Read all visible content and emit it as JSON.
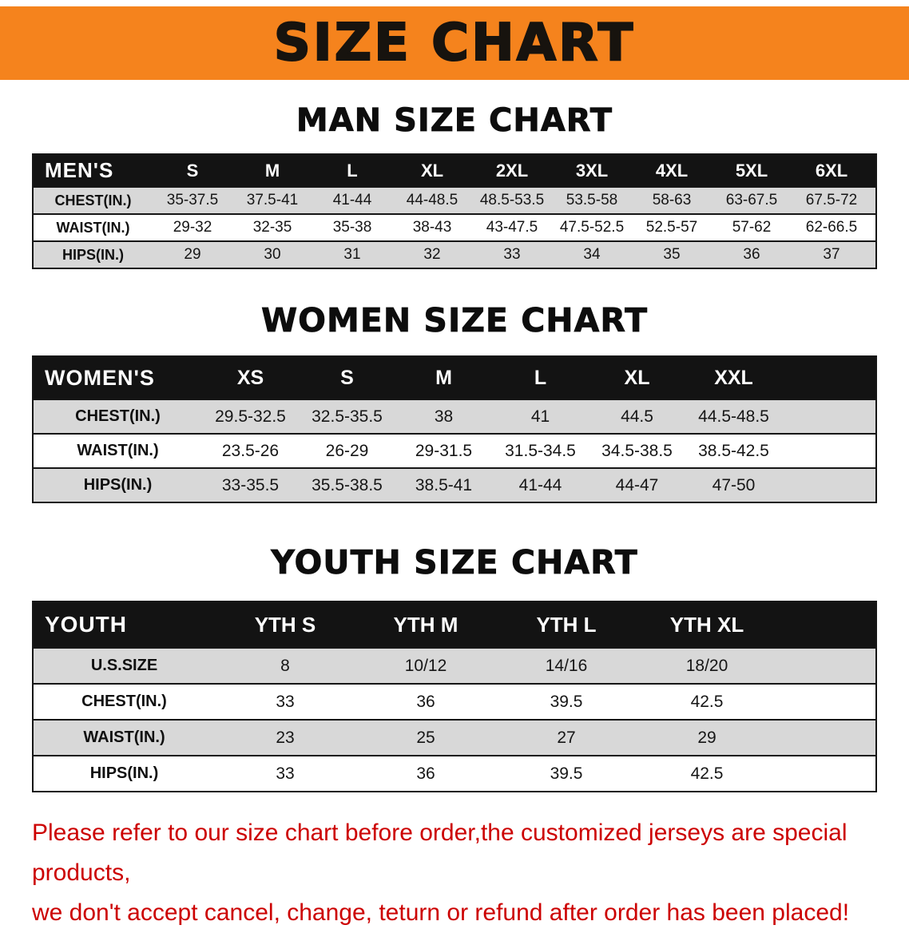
{
  "banner": {
    "title": "SIZE CHART",
    "background_color": "#F5831D"
  },
  "sections": [
    {
      "heading": "MAN SIZE CHART",
      "table": {
        "header_label": "MEN'S",
        "columns": [
          "S",
          "M",
          "L",
          "XL",
          "2XL",
          "3XL",
          "4XL",
          "5XL",
          "6XL"
        ],
        "rows": [
          {
            "label": "CHEST(IN.)",
            "values": [
              "35-37.5",
              "37.5-41",
              "41-44",
              "44-48.5",
              "48.5-53.5",
              "53.5-58",
              "58-63",
              "63-67.5",
              "67.5-72"
            ]
          },
          {
            "label": "WAIST(IN.)",
            "values": [
              "29-32",
              "32-35",
              "35-38",
              "38-43",
              "43-47.5",
              "47.5-52.5",
              "52.5-57",
              "57-62",
              "62-66.5"
            ]
          },
          {
            "label": "HIPS(IN.)",
            "values": [
              "29",
              "30",
              "31",
              "32",
              "33",
              "34",
              "35",
              "36",
              "37"
            ]
          }
        ]
      }
    },
    {
      "heading": "WOMEN SIZE CHART",
      "table": {
        "header_label": "WOMEN'S",
        "columns": [
          "XS",
          "S",
          "M",
          "L",
          "XL",
          "XXL"
        ],
        "rows": [
          {
            "label": "CHEST(IN.)",
            "values": [
              "29.5-32.5",
              "32.5-35.5",
              "38",
              "41",
              "44.5",
              "44.5-48.5"
            ]
          },
          {
            "label": "WAIST(IN.)",
            "values": [
              "23.5-26",
              "26-29",
              "29-31.5",
              "31.5-34.5",
              "34.5-38.5",
              "38.5-42.5"
            ]
          },
          {
            "label": "HIPS(IN.)",
            "values": [
              "33-35.5",
              "35.5-38.5",
              "38.5-41",
              "41-44",
              "44-47",
              "47-50"
            ]
          }
        ]
      }
    },
    {
      "heading": "YOUTH SIZE CHART",
      "table": {
        "header_label": "YOUTH",
        "columns": [
          "YTH S",
          "YTH M",
          "YTH L",
          "YTH XL"
        ],
        "rows": [
          {
            "label": "U.S.SIZE",
            "values": [
              "8",
              "10/12",
              "14/16",
              "18/20"
            ]
          },
          {
            "label": "CHEST(IN.)",
            "values": [
              "33",
              "36",
              "39.5",
              "42.5"
            ]
          },
          {
            "label": "WAIST(IN.)",
            "values": [
              "23",
              "25",
              "27",
              "29"
            ]
          },
          {
            "label": "HIPS(IN.)",
            "values": [
              "33",
              "36",
              "39.5",
              "42.5"
            ]
          }
        ]
      }
    }
  ],
  "footer": {
    "text_color": "#CC0000",
    "lines": [
      "Please refer to our size chart before order,the customized jerseys are special products,",
      "we don't accept cancel, change, teturn or refund after order has been placed!"
    ]
  }
}
